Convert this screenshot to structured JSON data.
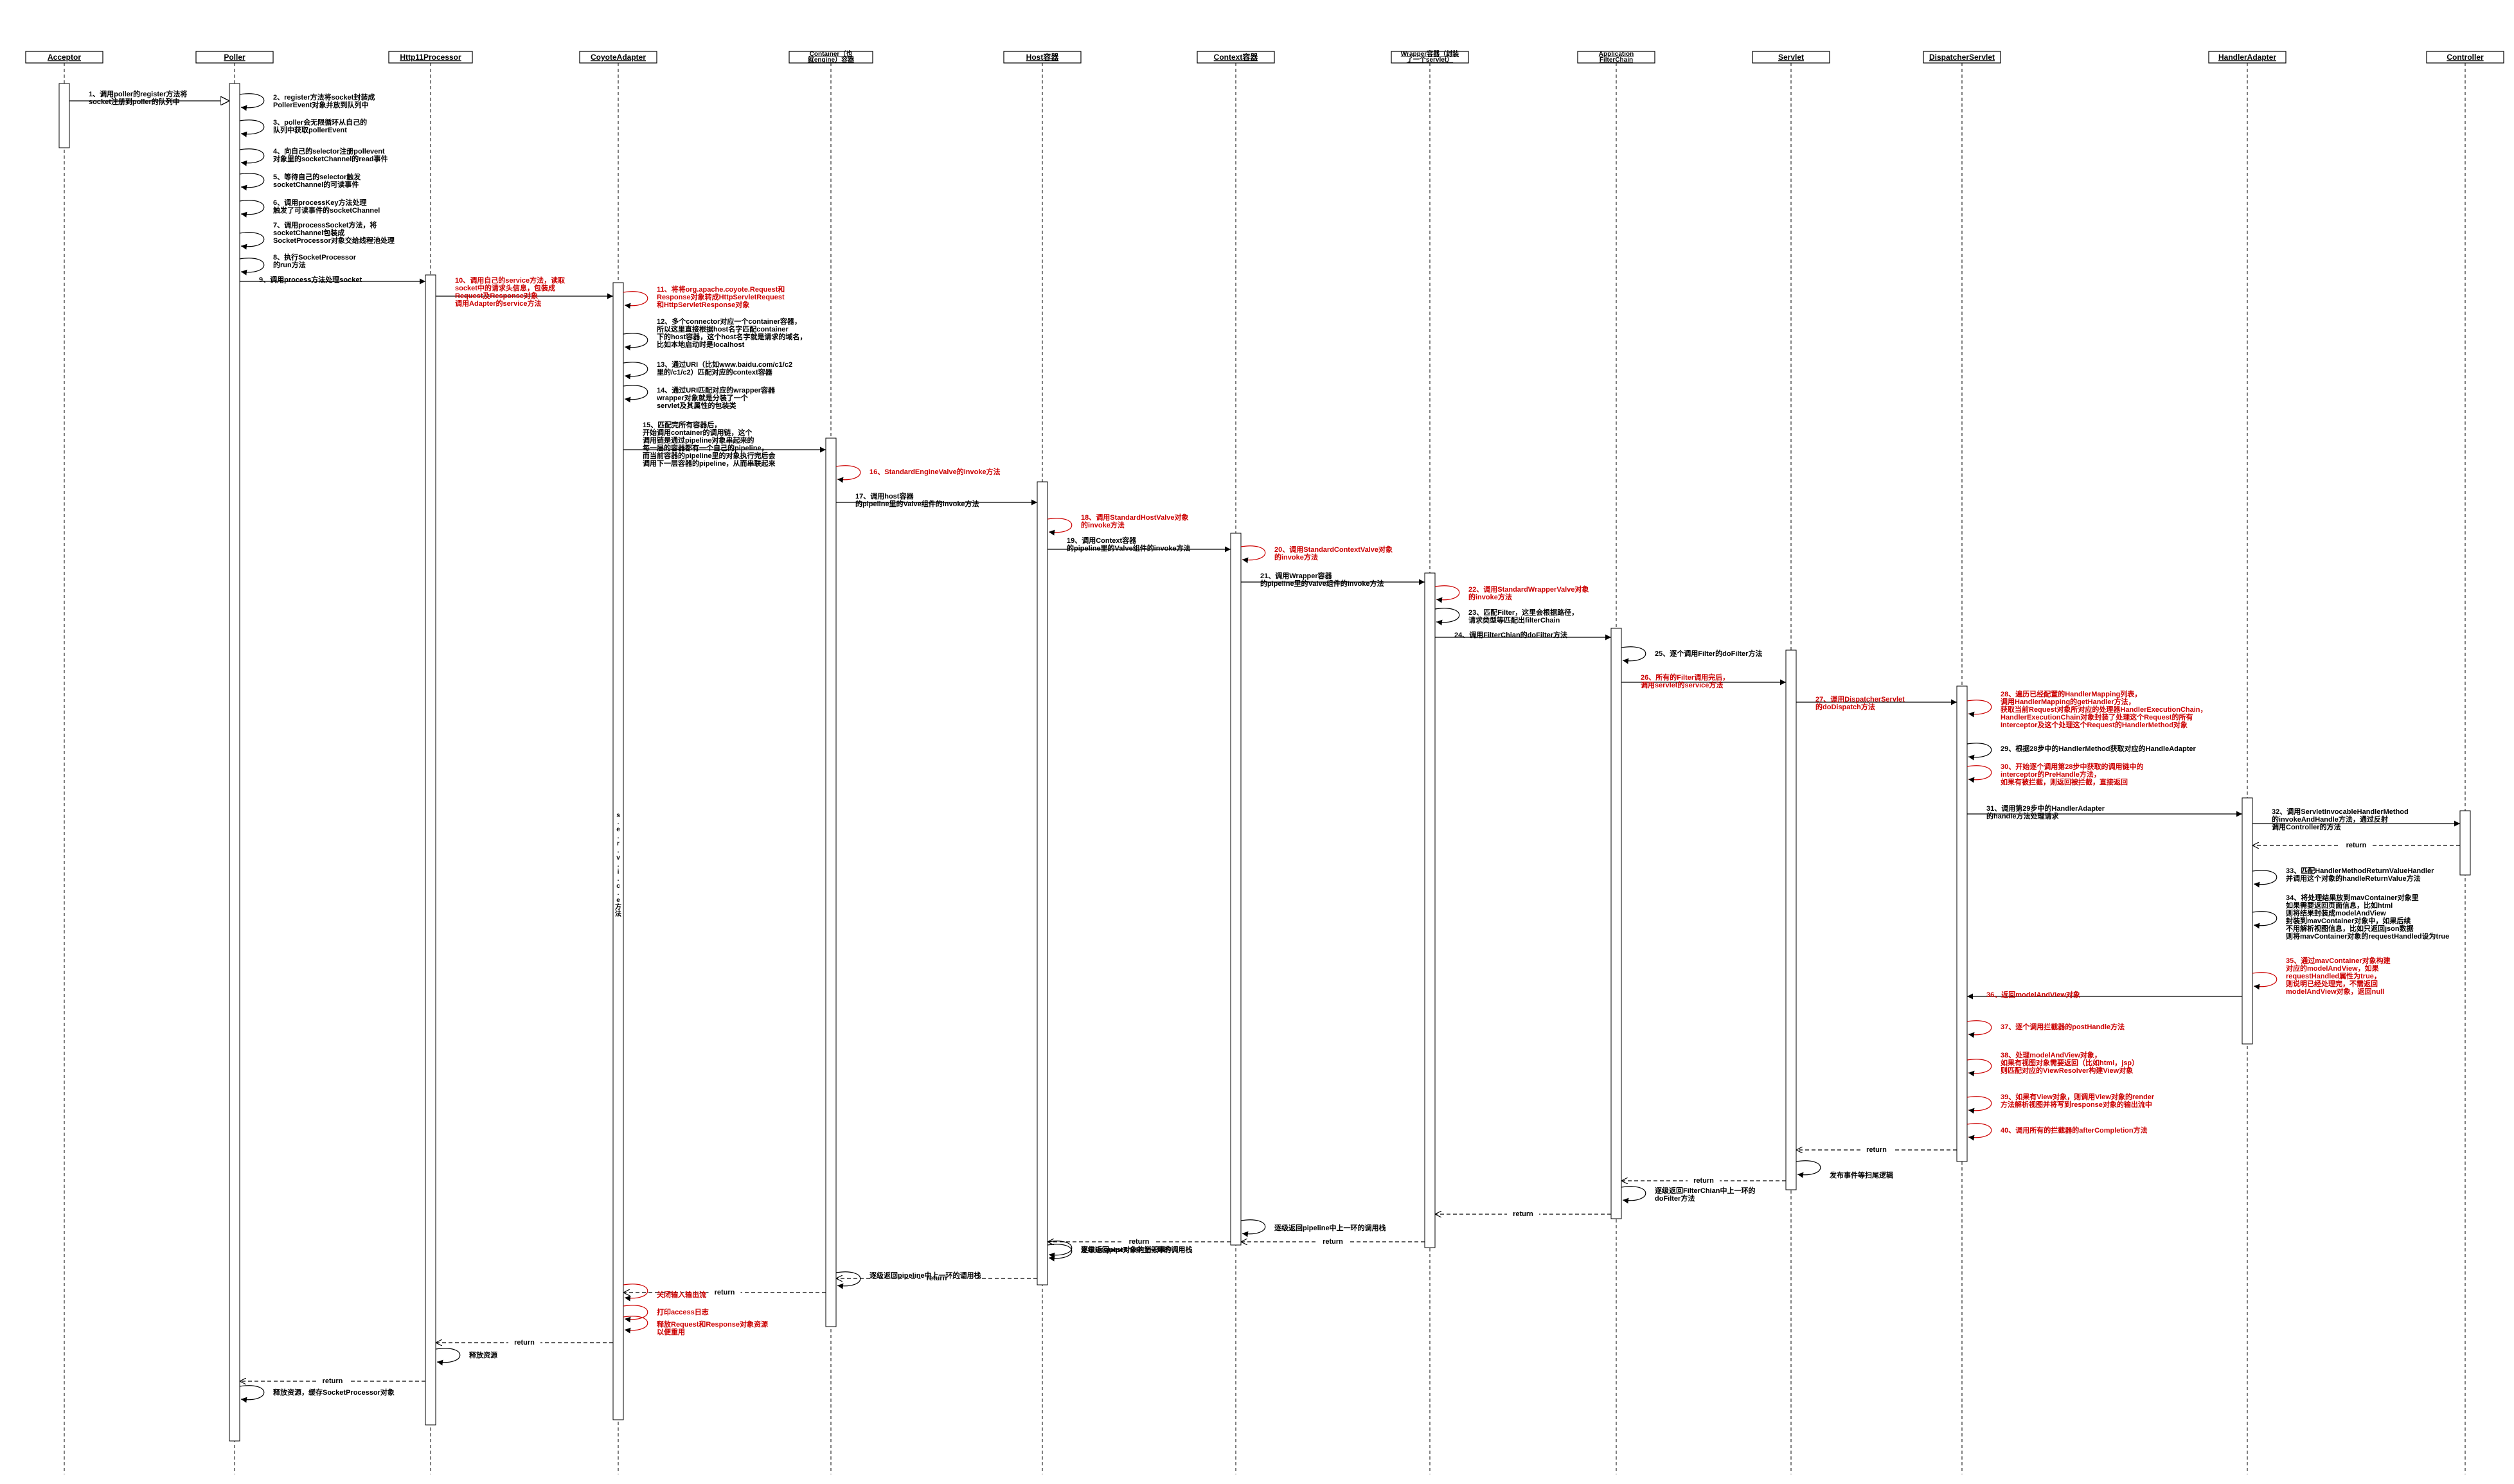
{
  "colors": {
    "black": "#000000",
    "red": "#cc0000"
  },
  "participants": [
    {
      "id": "acceptor",
      "label": "Acceptor"
    },
    {
      "id": "poller",
      "label": "Poller"
    },
    {
      "id": "http11",
      "label": "Http11Processor"
    },
    {
      "id": "coyote",
      "label": "CoyoteAdapter"
    },
    {
      "id": "container",
      "label": "Container（也就engine）容器"
    },
    {
      "id": "host",
      "label": "Host容器"
    },
    {
      "id": "context",
      "label": "Context容器"
    },
    {
      "id": "wrapper",
      "label": "Wrapper容器（封装了一个servlet）"
    },
    {
      "id": "filterchain",
      "label": "ApplicationFilterChain"
    },
    {
      "id": "servlet",
      "label": "Servlet"
    },
    {
      "id": "dispatcher",
      "label": "DispatcherServlet"
    },
    {
      "id": "handleradapter",
      "label": "HandlerAdapter"
    },
    {
      "id": "controller",
      "label": "Controller"
    }
  ],
  "messages": [
    {
      "from": "acceptor",
      "to": "poller",
      "kind": "open",
      "red": false,
      "text": [
        "1、调用poller的register方法将",
        "socket注册到poller的队列中"
      ]
    },
    {
      "from": "poller",
      "to": "poller",
      "kind": "self",
      "red": false,
      "text": [
        "2、register方法将socket封装成",
        "PollerEvent对象并放到队列中"
      ]
    },
    {
      "from": "poller",
      "to": "poller",
      "kind": "self",
      "red": false,
      "text": [
        "3、poller会无限循环从自己的",
        "队列中获取pollerEvent"
      ]
    },
    {
      "from": "poller",
      "to": "poller",
      "kind": "self",
      "red": false,
      "text": [
        "4、向自己的selector注册pollevent",
        "对象里的socketChannel的read事件"
      ]
    },
    {
      "from": "poller",
      "to": "poller",
      "kind": "self",
      "red": false,
      "text": [
        "5、等待自己的selector触发",
        "socketChannel的可读事件"
      ]
    },
    {
      "from": "poller",
      "to": "poller",
      "kind": "self",
      "red": false,
      "text": [
        "6、调用processKey方法处理",
        "触发了可读事件的socketChannel"
      ]
    },
    {
      "from": "poller",
      "to": "poller",
      "kind": "self",
      "red": false,
      "text": [
        "7、调用processSocket方法，将",
        "socketChannel包装成",
        "SocketProcessor对象交给线程池处理"
      ]
    },
    {
      "from": "poller",
      "to": "poller",
      "kind": "self",
      "red": false,
      "text": [
        "8、执行SocketProcessor",
        "的run方法"
      ]
    },
    {
      "from": "poller",
      "to": "http11",
      "kind": "call",
      "red": false,
      "text": [
        "9、调用process方法处理socket"
      ]
    },
    {
      "from": "http11",
      "to": "coyote",
      "kind": "call",
      "red": true,
      "text": [
        "10、调用自己的service方法，读取",
        "socket中的请求头信息，包装成",
        "Request及Response对象",
        "调用Adapter的service方法"
      ]
    },
    {
      "from": "coyote",
      "to": "coyote",
      "kind": "self",
      "red": true,
      "text": [
        "11、将将org.apache.coyote.Request和",
        "Response对象转成HttpServletRequest",
        "和HttpServletResponse对象"
      ]
    },
    {
      "from": "coyote",
      "to": "coyote",
      "kind": "self",
      "red": false,
      "text": [
        "12、多个connector对应一个container容器，",
        "所以这里直接根据host名字匹配container",
        "下的host容器，这个host名字就是请求的域名，",
        "比如本地启动时是localhost"
      ]
    },
    {
      "from": "coyote",
      "to": "coyote",
      "kind": "self",
      "red": false,
      "text": [
        "13、通过URI（比如www.baidu.com/c1/c2",
        "里的/c1/c2）匹配对应的context容器"
      ]
    },
    {
      "from": "coyote",
      "to": "coyote",
      "kind": "self",
      "red": false,
      "text": [
        "14、通过URI匹配对应的wrapper容器",
        "wrapper对象就是分装了一个",
        "servlet及其属性的包装类"
      ]
    },
    {
      "from": "coyote",
      "to": "container",
      "kind": "call",
      "red": false,
      "text": [
        "15、匹配完所有容器后，",
        "开始调用container的调用链，这个",
        "调用链是通过pipeline对象串起来的",
        "每一层的容器都有一个自己的pipeline，",
        "而当前容器的pipeline里的对象执行完后会",
        "调用下一层容器的pipeline，从而串联起来"
      ]
    },
    {
      "from": "container",
      "to": "container",
      "kind": "self",
      "red": true,
      "text": [
        "16、StandardEngineValve的invoke方法"
      ]
    },
    {
      "from": "container",
      "to": "host",
      "kind": "call",
      "red": false,
      "text": [
        "17、调用host容器",
        "的pipeline里的Valve组件的invoke方法"
      ]
    },
    {
      "from": "host",
      "to": "host",
      "kind": "self",
      "red": true,
      "text": [
        "18、调用StandardHostValve对象",
        "的invoke方法"
      ]
    },
    {
      "from": "host",
      "to": "context",
      "kind": "call",
      "red": false,
      "text": [
        "19、调用Context容器",
        "的pipeline里的Valve组件的invoke方法"
      ]
    },
    {
      "from": "context",
      "to": "context",
      "kind": "self",
      "red": true,
      "text": [
        "20、调用StandardContextValve对象",
        "的invoke方法"
      ]
    },
    {
      "from": "context",
      "to": "wrapper",
      "kind": "call",
      "red": false,
      "text": [
        "21、调用Wrapper容器",
        "的pipeline里的Valve组件的invoke方法"
      ]
    },
    {
      "from": "wrapper",
      "to": "wrapper",
      "kind": "self",
      "red": true,
      "text": [
        "22、调用StandardWrapperValve对象",
        "的invoke方法"
      ]
    },
    {
      "from": "wrapper",
      "to": "wrapper",
      "kind": "self",
      "red": false,
      "text": [
        "23、匹配Filter，这里会根据路径，",
        "请求类型等匹配出filterChain"
      ]
    },
    {
      "from": "wrapper",
      "to": "filterchain",
      "kind": "call",
      "red": false,
      "text": [
        "24、调用FilterChian的doFilter方法"
      ]
    },
    {
      "from": "filterchain",
      "to": "filterchain",
      "kind": "self",
      "red": false,
      "text": [
        "25、逐个调用Filter的doFilter方法"
      ]
    },
    {
      "from": "filterchain",
      "to": "servlet",
      "kind": "call",
      "red": true,
      "text": [
        "26、所有的Filter调用完后，",
        "调用servlet的service方法"
      ]
    },
    {
      "from": "servlet",
      "to": "dispatcher",
      "kind": "call",
      "red": true,
      "text": [
        "27、调用DispatcherServlet",
        "的doDispatch方法"
      ]
    },
    {
      "from": "dispatcher",
      "to": "dispatcher",
      "kind": "self",
      "red": true,
      "text": [
        "28、遍历已经配置的HandlerMapping列表，",
        "调用HandlerMapping的getHandler方法，",
        "获取当前Request对象所对应的处理器HandlerExecutionChain，",
        "HandlerExecutionChain对象封装了处理这个Request的所有",
        "Interceptor及这个处理这个Request的HandlerMethod对象"
      ]
    },
    {
      "from": "dispatcher",
      "to": "dispatcher",
      "kind": "self",
      "red": false,
      "text": [
        "29、根据28步中的HandlerMethod获取对应的HandleAdapter"
      ]
    },
    {
      "from": "dispatcher",
      "to": "dispatcher",
      "kind": "self",
      "red": true,
      "text": [
        "30、开始逐个调用第28步中获取的调用链中的",
        "interceptor的PreHandle方法，",
        "如果有被拦截，则返回被拦截，直接返回"
      ]
    },
    {
      "from": "dispatcher",
      "to": "handleradapter",
      "kind": "call",
      "red": false,
      "text": [
        "31、调用第29步中的HandlerAdapter",
        "的handle方法处理请求"
      ]
    },
    {
      "from": "handleradapter",
      "to": "controller",
      "kind": "call",
      "red": false,
      "text": [
        "32、调用ServletInvocableHandlerMethod",
        "的invokeAndHandle方法，通过反射",
        "调用Controller的方法"
      ]
    },
    {
      "from": "controller",
      "to": "handleradapter",
      "kind": "return",
      "red": false,
      "text": [
        "return"
      ]
    },
    {
      "from": "handleradapter",
      "to": "handleradapter",
      "kind": "self",
      "red": false,
      "text": [
        "33、匹配HandlerMethodReturnValueHandler",
        "并调用这个对象的handleReturnValue方法"
      ]
    },
    {
      "from": "handleradapter",
      "to": "handleradapter",
      "kind": "self",
      "red": false,
      "text": [
        "34、将处理结果放到mavContainer对象里",
        "如果需要返回页面信息，比如html",
        "则将结果封装成modelAndView",
        "封装到mavContainer对象中，如果后续",
        "不用解析视图信息，比如只返回json数据",
        "则将mavContainer对象的requestHandled设为true"
      ]
    },
    {
      "from": "handleradapter",
      "to": "handleradapter",
      "kind": "self",
      "red": true,
      "text": [
        "35、通过mavContainer对象构建",
        "对应的modelAndView，如果",
        "requestHandled属性为true，",
        "则说明已经处理完，不需返回",
        "modelAndView对象，返回null"
      ]
    },
    {
      "from": "handleradapter",
      "to": "dispatcher",
      "kind": "call",
      "red": true,
      "text": [
        "36、返回modelAndView对象"
      ]
    },
    {
      "from": "dispatcher",
      "to": "dispatcher",
      "kind": "self",
      "red": true,
      "text": [
        "37、逐个调用拦截器的postHandle方法"
      ]
    },
    {
      "from": "dispatcher",
      "to": "dispatcher",
      "kind": "self",
      "red": true,
      "text": [
        "38、处理modelAndView对象，",
        "如果有视图对象需要返回（比如html，jsp）",
        "则匹配对应的ViewResolver构建View对象"
      ]
    },
    {
      "from": "dispatcher",
      "to": "dispatcher",
      "kind": "self",
      "red": true,
      "text": [
        "39、如果有View对象，则调用View对象的render",
        "方法解析视图并将写到response对象的输出流中"
      ]
    },
    {
      "from": "dispatcher",
      "to": "dispatcher",
      "kind": "self",
      "red": true,
      "text": [
        "40、调用所有的拦截器的afterCompletion方法"
      ]
    },
    {
      "from": "dispatcher",
      "to": "servlet",
      "kind": "return",
      "red": false,
      "text": [
        "return"
      ]
    },
    {
      "from": "servlet",
      "to": "servlet",
      "kind": "self",
      "red": false,
      "text": [
        "发布事件等扫尾逻辑"
      ]
    },
    {
      "from": "servlet",
      "to": "filterchain",
      "kind": "return",
      "red": false,
      "text": [
        "return"
      ]
    },
    {
      "from": "filterchain",
      "to": "filterchain",
      "kind": "self",
      "red": false,
      "text": [
        "逐级返回FilterChian中上一环的",
        "doFilter方法"
      ]
    },
    {
      "from": "filterchain",
      "to": "wrapper",
      "kind": "return",
      "red": false,
      "text": [
        "return"
      ]
    },
    {
      "from": "context",
      "to": "context",
      "kind": "self",
      "red": false,
      "text": [
        "逐级返回pipeline中上一环的调用栈"
      ]
    },
    {
      "from": "wrapper",
      "to": "context",
      "kind": "return",
      "red": false,
      "text": [
        "return"
      ]
    },
    {
      "from": "context",
      "to": "host",
      "kind": "return",
      "red": false,
      "text": [
        "return"
      ]
    },
    {
      "from": "host",
      "to": "host",
      "kind": "self",
      "red": false,
      "text": [
        "逐级返回pipeline中上一环的调用栈"
      ]
    },
    {
      "from": "host",
      "to": "host",
      "kind": "self",
      "red": false,
      "text": [
        "发布Request对象的销毁事件"
      ]
    },
    {
      "from": "host",
      "to": "container",
      "kind": "return",
      "red": false,
      "text": [
        "return"
      ]
    },
    {
      "from": "container",
      "to": "container",
      "kind": "self",
      "red": false,
      "text": [
        "逐级返回pipeline中上一环的调用栈"
      ]
    },
    {
      "from": "container",
      "to": "coyote",
      "kind": "return",
      "red": false,
      "text": [
        "return"
      ]
    },
    {
      "from": "coyote",
      "to": "coyote",
      "kind": "self",
      "red": true,
      "text": [
        "关闭输入输出流"
      ]
    },
    {
      "from": "coyote",
      "to": "coyote",
      "kind": "self",
      "red": true,
      "text": [
        "打印access日志"
      ]
    },
    {
      "from": "coyote",
      "to": "coyote",
      "kind": "self",
      "red": true,
      "text": [
        "释放Request和Response对象资源",
        "以便重用"
      ]
    },
    {
      "from": "coyote",
      "to": "http11",
      "kind": "return",
      "red": false,
      "text": [
        "return"
      ]
    },
    {
      "from": "http11",
      "to": "http11",
      "kind": "self",
      "red": false,
      "text": [
        "释放资源"
      ]
    },
    {
      "from": "http11",
      "to": "poller",
      "kind": "return",
      "red": false,
      "text": [
        "return"
      ]
    },
    {
      "from": "poller",
      "to": "poller",
      "kind": "self",
      "red": false,
      "text": [
        "释放资源，缓存SocketProcessor对象"
      ]
    }
  ],
  "vertical_note": {
    "target": "coyote",
    "text": "s.e.r.v.i.c.e方法"
  }
}
